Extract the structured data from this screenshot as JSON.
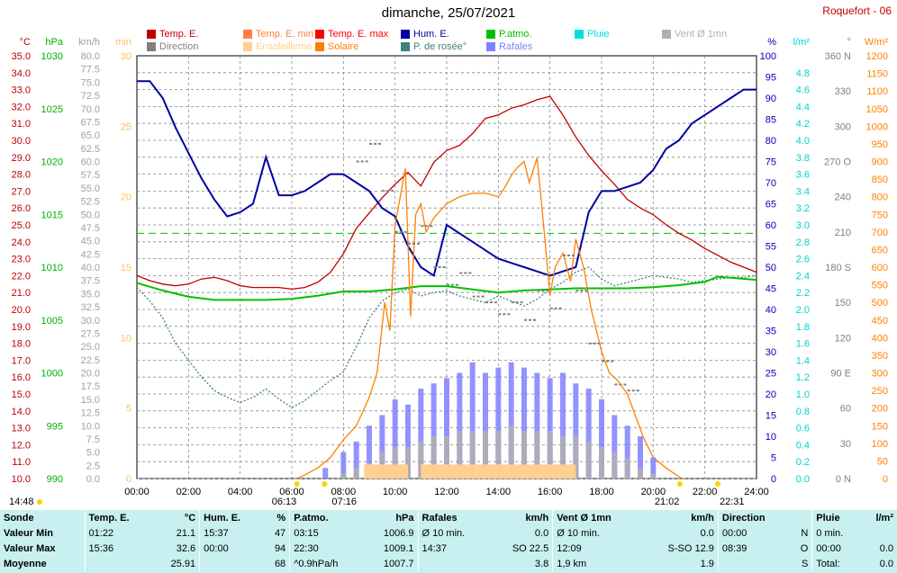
{
  "header": {
    "title": "dimanche, 25/07/2021",
    "station": "Roquefort - 06"
  },
  "legend": [
    {
      "label": "Temp. E.",
      "color": "#c00000"
    },
    {
      "label": "Direction",
      "color": "#808080"
    },
    {
      "label": "Temp. E. min",
      "color": "#ff8040"
    },
    {
      "label": "Ensoleilleme",
      "color": "#ffd090"
    },
    {
      "label": "Temp. E. max",
      "color": "#ff0000"
    },
    {
      "label": "Solaire",
      "color": "#ff8000"
    },
    {
      "label": "Hum. E.",
      "color": "#0000a0"
    },
    {
      "label": "P. de rosée°",
      "color": "#408080"
    },
    {
      "label": "P.atmo.",
      "color": "#00c000"
    },
    {
      "label": "Rafales",
      "color": "#8080ff"
    },
    {
      "label": "Pluie",
      "color": "#00e0e0"
    },
    {
      "label": "Vent Ø 1mn",
      "color": "#b0b0b0"
    }
  ],
  "axis_units": {
    "temp": "°C",
    "hpa": "hPa",
    "kmh": "km/h",
    "min": "min",
    "pct": "%",
    "rain": "l/m²",
    "deg": "°",
    "wm2": "W/m²"
  },
  "events": {
    "first_light": "14:48",
    "sunrise": "06:13",
    "sunrise2": "07:16",
    "sunset": "21:02",
    "end_light": "22:31"
  },
  "chart_data": {
    "type": "line",
    "x_label": "time",
    "x_ticks": [
      "00:00",
      "02:00",
      "04:00",
      "06:00",
      "08:00",
      "10:00",
      "12:00",
      "14:00",
      "16:00",
      "18:00",
      "20:00",
      "22:00",
      "24:00"
    ],
    "axes": {
      "temp": {
        "range": [
          10,
          35
        ],
        "ticks": [
          "10.0",
          "11.0",
          "12.0",
          "13.0",
          "14.0",
          "15.0",
          "16.0",
          "17.0",
          "18.0",
          "19.0",
          "20.0",
          "21.0",
          "22.0",
          "23.0",
          "24.0",
          "25.0",
          "26.0",
          "27.0",
          "28.0",
          "29.0",
          "30.0",
          "31.0",
          "32.0",
          "33.0",
          "34.0",
          "35.0"
        ]
      },
      "hpa": {
        "range": [
          990,
          1030
        ],
        "ticks": [
          "990",
          "995",
          "1000",
          "1005",
          "1010",
          "1015",
          "1020",
          "1025",
          "1030"
        ]
      },
      "kmh": {
        "range": [
          0,
          80
        ],
        "step": 2.5
      },
      "min": {
        "range": [
          0,
          30
        ],
        "ticks": [
          "0",
          "5",
          "10",
          "15",
          "20",
          "25",
          "30"
        ]
      },
      "pct": {
        "range": [
          0,
          100
        ],
        "step": 5
      },
      "rain": {
        "range": [
          0,
          5
        ],
        "ticks": [
          "0.0",
          "0.2",
          "0.4",
          "0.6",
          "0.8",
          "1.0",
          "1.2",
          "1.4",
          "1.6",
          "1.8",
          "2.0",
          "2.2",
          "2.4",
          "2.6",
          "2.8",
          "3.0",
          "3.2",
          "3.4",
          "3.6",
          "3.8",
          "4.0",
          "4.2",
          "4.4",
          "4.6",
          "4.8"
        ]
      },
      "deg": {
        "range": [
          0,
          360
        ],
        "ticks": [
          "0 N",
          "30",
          "60",
          "90 E",
          "120",
          "150",
          "180 S",
          "210",
          "240",
          "270 O",
          "300",
          "330",
          "360 N"
        ]
      },
      "wm2": {
        "range": [
          0,
          1200
        ],
        "step": 50
      }
    },
    "series": [
      {
        "name": "Temp. E.",
        "axis": "temp",
        "color": "#c00000",
        "x": [
          0,
          0.5,
          1,
          1.5,
          2,
          2.5,
          3,
          3.5,
          4,
          4.5,
          5,
          5.5,
          6,
          6.5,
          7,
          7.5,
          8,
          8.5,
          9,
          9.5,
          10,
          10.5,
          11,
          11.5,
          12,
          12.5,
          13,
          13.5,
          14,
          14.5,
          15,
          15.5,
          16,
          16.5,
          17,
          17.5,
          18,
          18.5,
          19,
          19.5,
          20,
          20.5,
          21,
          21.5,
          22,
          22.5,
          23,
          23.5,
          24
        ],
        "y": [
          22.0,
          21.7,
          21.5,
          21.4,
          21.5,
          21.8,
          21.9,
          21.7,
          21.4,
          21.3,
          21.3,
          21.3,
          21.2,
          21.3,
          21.6,
          22.2,
          23.3,
          24.8,
          25.7,
          26.6,
          27.4,
          28.1,
          27.3,
          28.7,
          29.4,
          29.7,
          30.4,
          31.3,
          31.5,
          31.9,
          32.1,
          32.4,
          32.6,
          31.5,
          30.2,
          29.1,
          28.2,
          27.4,
          26.5,
          26.0,
          25.6,
          25.0,
          24.5,
          24.1,
          23.6,
          23.2,
          22.8,
          22.5,
          22.2
        ]
      },
      {
        "name": "Hum. E.",
        "axis": "pct",
        "color": "#0000a0",
        "x": [
          0,
          0.5,
          1,
          1.5,
          2,
          2.5,
          3,
          3.5,
          4,
          4.5,
          5,
          5.5,
          6,
          6.5,
          7,
          7.5,
          8,
          8.5,
          9,
          9.5,
          10,
          10.5,
          11,
          11.5,
          12,
          12.5,
          13,
          13.5,
          14,
          14.5,
          15,
          15.5,
          16,
          16.5,
          17,
          17.5,
          18,
          18.5,
          19,
          19.5,
          20,
          20.5,
          21,
          21.5,
          22,
          22.5,
          23,
          23.5,
          24
        ],
        "y": [
          94,
          94,
          90,
          83,
          77,
          71,
          66,
          62,
          63,
          65,
          76,
          67,
          67,
          68,
          70,
          72,
          72,
          70,
          68,
          64,
          62,
          55,
          50,
          48,
          60,
          58,
          56,
          54,
          52,
          51,
          50,
          49,
          48,
          49,
          50,
          63,
          68,
          68,
          69,
          70,
          73,
          78,
          80,
          84,
          86,
          88,
          90,
          92,
          92
        ]
      },
      {
        "name": "P. de rosée°",
        "axis": "temp",
        "color": "#408080",
        "x": [
          0,
          0.5,
          1,
          1.5,
          2,
          2.5,
          3,
          3.5,
          4,
          4.5,
          5,
          5.5,
          6,
          6.5,
          7,
          7.5,
          8,
          8.5,
          9,
          9.5,
          10,
          10.5,
          11,
          11.5,
          12,
          12.5,
          13,
          13.5,
          14,
          14.5,
          15,
          15.5,
          16,
          16.5,
          17,
          17.5,
          18,
          18.5,
          19,
          19.5,
          20,
          20.5,
          21,
          21.5,
          22,
          22.5,
          23,
          23.5,
          24
        ],
        "y": [
          21.3,
          20.5,
          19.5,
          18.0,
          17.0,
          16.0,
          15.2,
          14.8,
          14.5,
          14.8,
          15.3,
          14.7,
          14.2,
          14.6,
          15.2,
          15.8,
          16.3,
          17.8,
          19.5,
          20.5,
          21.0,
          21.2,
          20.8,
          21.0,
          21.1,
          20.8,
          20.6,
          20.4,
          20.8,
          20.5,
          20.2,
          20.6,
          21.2,
          21.6,
          22.2,
          22.5,
          21.8,
          21.4,
          21.6,
          21.8,
          22.0,
          21.9,
          21.8,
          21.6,
          21.7,
          21.8,
          21.9,
          21.9,
          22.0
        ]
      },
      {
        "name": "P.atmo.",
        "axis": "hpa",
        "color": "#00c000",
        "x": [
          0,
          1,
          2,
          3,
          4,
          5,
          6,
          7,
          8,
          9,
          10,
          11,
          12,
          13,
          14,
          15,
          16,
          17,
          18,
          19,
          20,
          21,
          22,
          22.5,
          23,
          24
        ],
        "y": [
          1008.5,
          1007.8,
          1007.2,
          1006.9,
          1006.9,
          1006.9,
          1007.0,
          1007.3,
          1007.7,
          1007.7,
          1007.9,
          1008.2,
          1008.2,
          1007.9,
          1007.6,
          1007.8,
          1007.9,
          1008.0,
          1008.0,
          1008.0,
          1008.1,
          1008.3,
          1008.6,
          1009.1,
          1009.0,
          1008.8
        ]
      },
      {
        "name": "Solaire",
        "axis": "wm2",
        "color": "#ff8000",
        "x": [
          6.2,
          6.5,
          7,
          7.5,
          8,
          8.5,
          9,
          9.3,
          9.6,
          9.8,
          10,
          10.2,
          10.4,
          10.6,
          10.8,
          11,
          11.2,
          11.5,
          12,
          12.5,
          13,
          13.5,
          14,
          14.2,
          14.5,
          14.7,
          15,
          15.2,
          15.5,
          15.7,
          16,
          16.2,
          16.5,
          16.8,
          17,
          17.3,
          17.6,
          18,
          18.3,
          18.6,
          19,
          19.3,
          19.6,
          20,
          20.5,
          21,
          21.1
        ],
        "y": [
          0,
          10,
          30,
          60,
          110,
          150,
          230,
          300,
          500,
          420,
          720,
          800,
          880,
          460,
          750,
          780,
          700,
          740,
          780,
          800,
          810,
          810,
          800,
          820,
          860,
          880,
          900,
          840,
          910,
          760,
          520,
          600,
          640,
          560,
          680,
          600,
          480,
          360,
          300,
          280,
          240,
          180,
          120,
          60,
          30,
          5,
          0
        ]
      },
      {
        "name": "Rafales",
        "axis": "kmh",
        "color": "#8080ff",
        "x": [
          7.3,
          8,
          8.5,
          9,
          9.5,
          10,
          10.5,
          11,
          11.5,
          12,
          12.5,
          13,
          13.5,
          14,
          14.5,
          15,
          15.5,
          16,
          16.5,
          17,
          17.5,
          18,
          18.5,
          19,
          19.5,
          20
        ],
        "y": [
          2,
          5,
          7,
          10,
          12,
          15,
          14,
          17,
          18,
          19,
          20,
          22,
          20,
          21,
          22,
          21,
          20,
          19,
          20,
          18,
          17,
          15,
          12,
          10,
          8,
          4
        ]
      },
      {
        "name": "Vent Ø 1mn",
        "axis": "kmh",
        "color": "#b0b0b0",
        "x": [
          7.3,
          8,
          8.5,
          9,
          9.5,
          10,
          10.5,
          11,
          11.5,
          12,
          12.5,
          13,
          13.5,
          14,
          14.5,
          15,
          15.5,
          16,
          16.5,
          17,
          17.5,
          18,
          18.5,
          19,
          19.5,
          20
        ],
        "y": [
          0,
          1,
          2,
          3,
          5,
          6,
          6,
          7,
          8,
          8,
          9,
          9,
          9,
          9,
          10,
          9,
          9,
          9,
          8,
          8,
          7,
          6,
          5,
          4,
          2,
          1
        ]
      },
      {
        "name": "Direction",
        "axis": "deg",
        "color": "#808080",
        "x": [
          8.5,
          9,
          9.5,
          10,
          10.5,
          11,
          11.5,
          12,
          12.5,
          13,
          13.5,
          14,
          14.5,
          15,
          15.5,
          16,
          16.5,
          17,
          17.5,
          18,
          18.5,
          19
        ],
        "y": [
          270,
          285,
          245,
          210,
          200,
          215,
          180,
          165,
          175,
          155,
          150,
          140,
          150,
          135,
          160,
          145,
          190,
          160,
          115,
          100,
          80,
          75
        ]
      },
      {
        "name": "Ensoleilleme",
        "axis": "min",
        "color": "#ffd090",
        "x": [
          8.8,
          9,
          9.5,
          10,
          10.5,
          11,
          11.5,
          12,
          12.5,
          13,
          13.5,
          14,
          14.5,
          15,
          15.5,
          16,
          16.5
        ],
        "y": [
          1,
          1,
          1,
          1,
          0,
          1,
          1,
          1,
          1,
          1,
          1,
          1,
          1,
          1,
          1,
          1,
          1
        ]
      }
    ],
    "reference_lines": [
      {
        "axis": "pct",
        "value": 58,
        "color": "#00c000"
      }
    ]
  },
  "stats": {
    "headers": [
      {
        "label": "Sonde",
        "unit": ""
      },
      {
        "label": "Temp. E.",
        "unit": "°C"
      },
      {
        "label": "Hum. E.",
        "unit": "%"
      },
      {
        "label": "P.atmo.",
        "unit": "hPa"
      },
      {
        "label": "Rafales",
        "unit": "km/h"
      },
      {
        "label": "Vent Ø 1mn",
        "unit": "km/h"
      },
      {
        "label": "Direction",
        "unit": ""
      },
      {
        "label": "Pluie",
        "unit": "l/m²"
      }
    ],
    "rows": [
      {
        "label": "Valeur Min",
        "cells": [
          [
            "01:22",
            "21.1"
          ],
          [
            "15:37",
            "47"
          ],
          [
            "03:15",
            "1006.9"
          ],
          [
            "Ø 10 min.",
            "0.0"
          ],
          [
            "Ø 10 min.",
            "0.0"
          ],
          [
            "00:00",
            "N"
          ],
          [
            "0 min.",
            ""
          ]
        ]
      },
      {
        "label": "Valeur Max",
        "cells": [
          [
            "15:36",
            "32.6"
          ],
          [
            "00:00",
            "94"
          ],
          [
            "22:30",
            "1009.1"
          ],
          [
            "14:37",
            "SO 22.5"
          ],
          [
            "12:09",
            "S-SO 12.9"
          ],
          [
            "08:39",
            "O"
          ],
          [
            "00:00",
            "0.0"
          ]
        ]
      },
      {
        "label": "Moyenne",
        "cells": [
          [
            "",
            "25.91"
          ],
          [
            "",
            "68"
          ],
          [
            "^0.9hPa/h",
            "1007.7"
          ],
          [
            "",
            "3.8"
          ],
          [
            "1,9 km",
            "1.9"
          ],
          [
            "",
            "S"
          ],
          [
            "Total:",
            "0.0"
          ]
        ]
      }
    ]
  }
}
